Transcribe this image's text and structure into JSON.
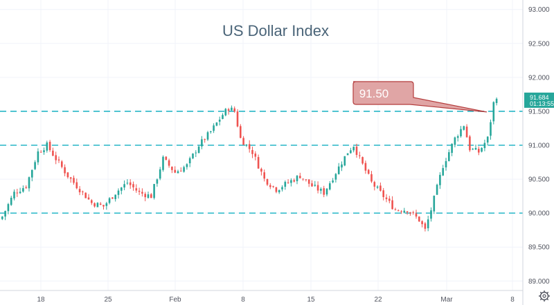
{
  "chart_data": {
    "type": "candlestick",
    "title": "US Dollar Index",
    "ylim": [
      88.86,
      93.14
    ],
    "y_ticks": [
      "93.000",
      "92.500",
      "92.000",
      "91.500",
      "91.000",
      "90.500",
      "90.000",
      "89.500",
      "89.000"
    ],
    "x_tick_labels": [
      "18",
      "25",
      "Feb",
      "8",
      "15",
      "22",
      "Mar",
      "8"
    ],
    "horizontal_levels": [
      91.5,
      91.0,
      90.0
    ],
    "callout": {
      "label": "91.50",
      "target_value": 91.5
    },
    "last_price": {
      "value": "91.684",
      "countdown": "01:13:55"
    },
    "colors": {
      "up": "#26a69a",
      "down": "#ef5350",
      "level_line": "#26b6c6",
      "callout_fill": "#e0a5a5",
      "callout_border": "#b43c3c",
      "price_label": "#26a69a"
    },
    "grid": true,
    "anchors": [
      [
        0,
        89.95
      ],
      [
        4,
        90.3
      ],
      [
        8,
        90.4
      ],
      [
        12,
        90.9
      ],
      [
        15,
        91.0
      ],
      [
        18,
        90.8
      ],
      [
        22,
        90.55
      ],
      [
        26,
        90.35
      ],
      [
        30,
        90.15
      ],
      [
        34,
        90.1
      ],
      [
        38,
        90.3
      ],
      [
        42,
        90.45
      ],
      [
        46,
        90.3
      ],
      [
        50,
        90.25
      ],
      [
        54,
        90.8
      ],
      [
        58,
        90.6
      ],
      [
        62,
        90.7
      ],
      [
        66,
        91.0
      ],
      [
        70,
        91.2
      ],
      [
        74,
        91.45
      ],
      [
        76,
        91.55
      ],
      [
        78,
        91.5
      ],
      [
        80,
        91.1
      ],
      [
        84,
        90.9
      ],
      [
        88,
        90.5
      ],
      [
        92,
        90.35
      ],
      [
        96,
        90.45
      ],
      [
        100,
        90.55
      ],
      [
        104,
        90.4
      ],
      [
        108,
        90.3
      ],
      [
        112,
        90.6
      ],
      [
        116,
        90.9
      ],
      [
        118,
        91.0
      ],
      [
        120,
        90.8
      ],
      [
        124,
        90.45
      ],
      [
        128,
        90.25
      ],
      [
        132,
        90.05
      ],
      [
        136,
        90.05
      ],
      [
        140,
        89.9
      ],
      [
        142,
        89.75
      ],
      [
        144,
        90.05
      ],
      [
        148,
        90.7
      ],
      [
        152,
        91.1
      ],
      [
        155,
        91.3
      ],
      [
        157,
        90.95
      ],
      [
        160,
        90.9
      ],
      [
        163,
        91.1
      ],
      [
        165,
        91.62
      ],
      [
        166,
        91.684
      ]
    ]
  }
}
